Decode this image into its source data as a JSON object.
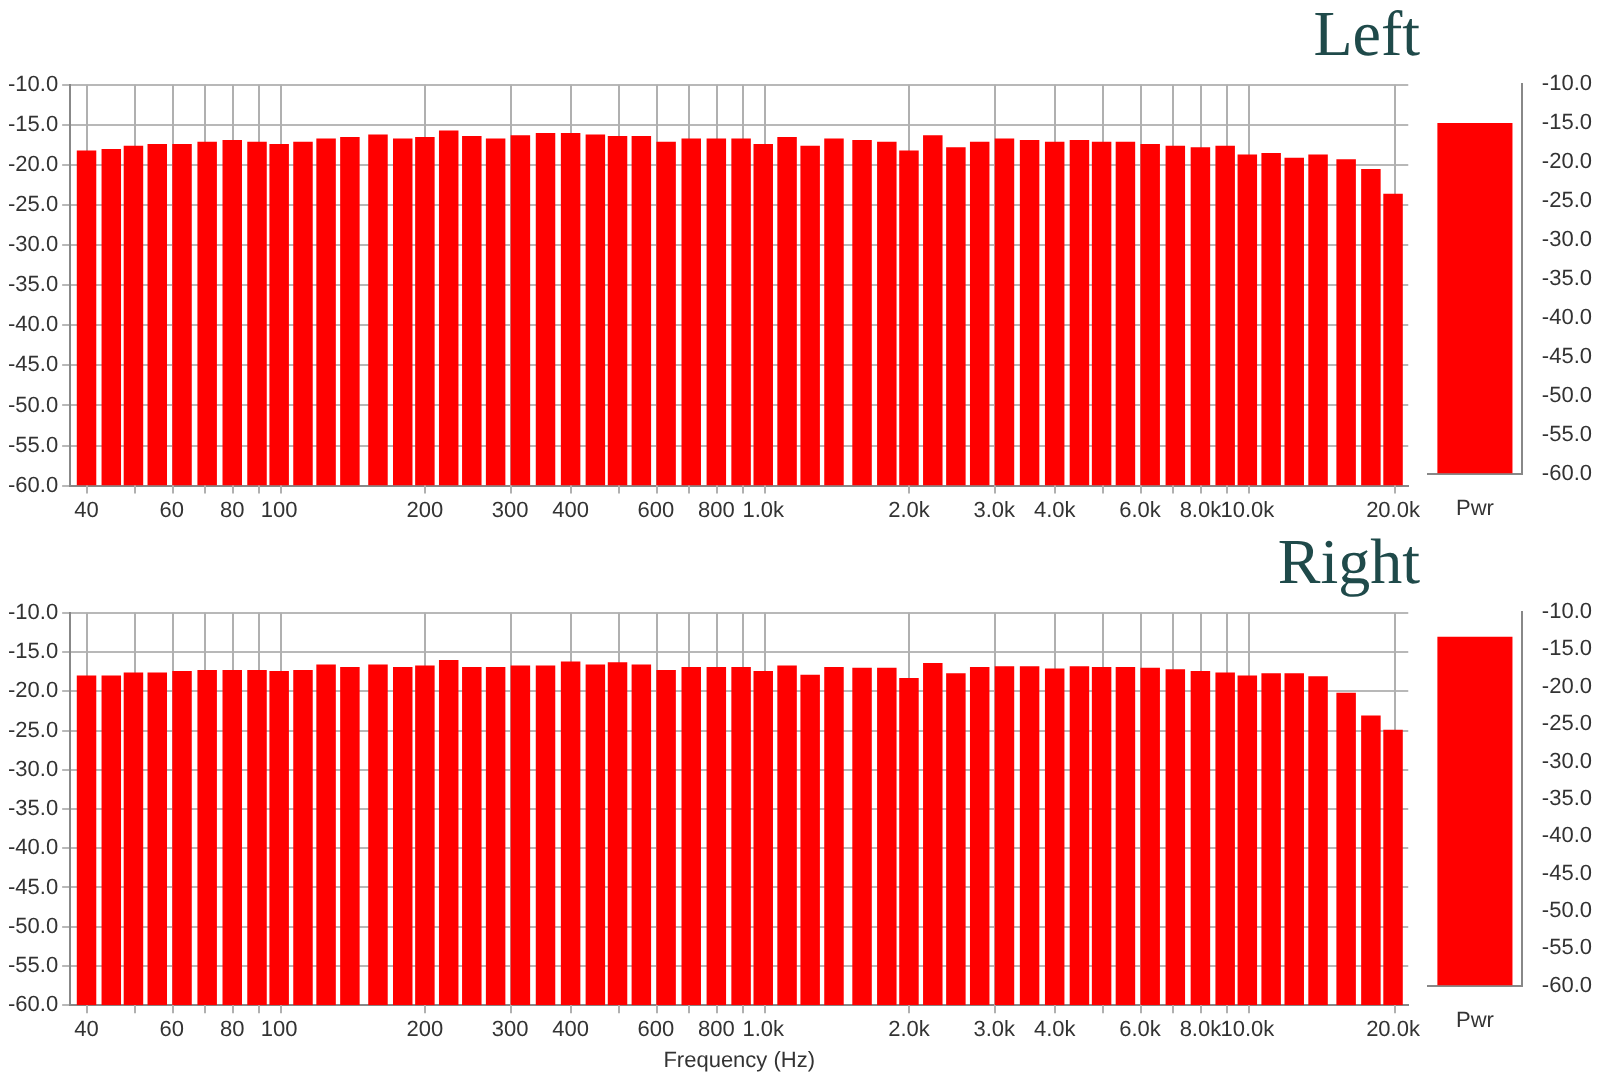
{
  "chart_data": [
    {
      "type": "bar",
      "title": "Left",
      "x": [
        40,
        45,
        50,
        56,
        63,
        71,
        80,
        90,
        100,
        112,
        125,
        140,
        160,
        180,
        200,
        224,
        250,
        280,
        315,
        355,
        400,
        450,
        500,
        560,
        630,
        710,
        800,
        900,
        1000,
        1120,
        1250,
        1400,
        1600,
        1800,
        2000,
        2240,
        2500,
        2800,
        3150,
        3550,
        4000,
        4500,
        5000,
        5600,
        6300,
        7100,
        8000,
        9000,
        10000,
        11200,
        12500,
        14000,
        16000,
        18000,
        20000
      ],
      "base": [
        -60,
        -60,
        -60,
        -60,
        -60,
        -60,
        -60,
        -60,
        -60,
        -60,
        -60,
        -60,
        -60,
        -60,
        -60,
        -60,
        -60,
        -60,
        -60,
        -60,
        -60,
        -60,
        -60,
        -60,
        -60,
        -60,
        -60,
        -60,
        -60,
        -60,
        -60,
        -60,
        -60,
        -60,
        -60,
        -60,
        -60,
        -60,
        -60,
        -60,
        -60,
        -60,
        -60,
        -60,
        -60,
        -60,
        -60,
        -60,
        -60,
        -60,
        -60,
        -60,
        -60,
        -60,
        -60
      ],
      "values": [
        41.8,
        42.0,
        42.4,
        42.6,
        42.6,
        42.9,
        43.1,
        42.9,
        42.6,
        42.9,
        43.3,
        43.5,
        43.8,
        43.3,
        43.5,
        44.3,
        43.6,
        43.3,
        43.7,
        44.0,
        44.0,
        43.8,
        43.6,
        43.6,
        42.9,
        43.3,
        43.3,
        43.3,
        42.6,
        43.5,
        42.4,
        43.3,
        43.1,
        42.9,
        41.8,
        43.7,
        42.2,
        42.9,
        43.3,
        43.1,
        42.9,
        43.1,
        42.9,
        42.9,
        42.6,
        42.4,
        42.2,
        42.4,
        41.3,
        41.5,
        40.9,
        41.3,
        40.7,
        39.5,
        36.4
      ],
      "color": "#ff0000",
      "log": "x",
      "grid": true,
      "xlim": [
        37,
        21500
      ],
      "xticks": [
        40,
        {
          "value": 50,
          "label": null
        },
        60,
        {
          "value": 70,
          "label": null
        },
        80,
        {
          "value": 90,
          "label": null
        },
        100,
        200,
        300,
        400,
        {
          "value": 500,
          "label": null
        },
        600,
        {
          "value": 700,
          "label": null
        },
        800,
        {
          "value": 900,
          "label": null
        },
        {
          "value": 1000,
          "label": "1.0k"
        },
        {
          "value": 2000,
          "label": "2.0k"
        },
        {
          "value": 3000,
          "label": "3.0k"
        },
        {
          "value": 4000,
          "label": "4.0k"
        },
        {
          "value": 5000,
          "label": null
        },
        {
          "value": 6000,
          "label": "6.0k"
        },
        {
          "value": 7000,
          "label": null
        },
        {
          "value": 8000,
          "label": "8.0k"
        },
        {
          "value": 9000,
          "label": null
        },
        {
          "value": 10000,
          "label": "10.0k"
        },
        {
          "value": 20000,
          "label": "20.0k"
        }
      ],
      "ylim": [
        -60,
        -10
      ],
      "yticks": [
        {
          "value": -60,
          "label": "-60.0"
        },
        {
          "value": -55,
          "label": "-55.0"
        },
        {
          "value": -50,
          "label": "-50.0"
        },
        {
          "value": -45,
          "label": "-45.0"
        },
        {
          "value": -40,
          "label": "-40.0"
        },
        {
          "value": -35,
          "label": "-35.0"
        },
        {
          "value": -30,
          "label": "-30.0"
        },
        {
          "value": -25,
          "label": "-25.0"
        },
        {
          "value": -20,
          "label": "-20.0"
        },
        {
          "value": -15,
          "label": "-15.0"
        },
        {
          "value": -10,
          "label": "-10.0"
        }
      ]
    },
    {
      "type": "bar",
      "categories": [
        "Pwr"
      ],
      "series": [
        {
          "color": "#ff0000",
          "axis": "y2",
          "base": [
            -60
          ],
          "values": [
            45.0
          ]
        }
      ],
      "y2lim": [
        -60,
        -10
      ],
      "y2ticks": [
        {
          "value": -60,
          "label": "-60.0"
        },
        {
          "value": -55,
          "label": "-55.0"
        },
        {
          "value": -50,
          "label": "-50.0"
        },
        {
          "value": -45,
          "label": "-45.0"
        },
        {
          "value": -40,
          "label": "-40.0"
        },
        {
          "value": -35,
          "label": "-35.0"
        },
        {
          "value": -30,
          "label": "-30.0"
        },
        {
          "value": -25,
          "label": "-25.0"
        },
        {
          "value": -20,
          "label": "-20.0"
        },
        {
          "value": -15,
          "label": "-15.0"
        },
        {
          "value": -10,
          "label": "-10.0"
        }
      ]
    },
    {
      "type": "bar",
      "title": "Right",
      "xlabel": "Frequency (Hz)",
      "x": [
        40,
        45,
        50,
        56,
        63,
        71,
        80,
        90,
        100,
        112,
        125,
        140,
        160,
        180,
        200,
        224,
        250,
        280,
        315,
        355,
        400,
        450,
        500,
        560,
        630,
        710,
        800,
        900,
        1000,
        1120,
        1250,
        1400,
        1600,
        1800,
        2000,
        2240,
        2500,
        2800,
        3150,
        3550,
        4000,
        4500,
        5000,
        5600,
        6300,
        7100,
        8000,
        9000,
        10000,
        11200,
        12500,
        14000,
        16000,
        18000,
        20000
      ],
      "base": [
        -60,
        -60,
        -60,
        -60,
        -60,
        -60,
        -60,
        -60,
        -60,
        -60,
        -60,
        -60,
        -60,
        -60,
        -60,
        -60,
        -60,
        -60,
        -60,
        -60,
        -60,
        -60,
        -60,
        -60,
        -60,
        -60,
        -60,
        -60,
        -60,
        -60,
        -60,
        -60,
        -60,
        -60,
        -60,
        -60,
        -60,
        -60,
        -60,
        -60,
        -60,
        -60,
        -60,
        -60,
        -60,
        -60,
        -60,
        -60,
        -60,
        -60,
        -60,
        -60,
        -60,
        -60,
        -60
      ],
      "values": [
        42.0,
        42.0,
        42.4,
        42.4,
        42.6,
        42.7,
        42.7,
        42.7,
        42.6,
        42.7,
        43.4,
        43.1,
        43.4,
        43.1,
        43.3,
        44.0,
        43.1,
        43.1,
        43.3,
        43.3,
        43.8,
        43.4,
        43.7,
        43.4,
        42.7,
        43.1,
        43.1,
        43.1,
        42.6,
        43.3,
        42.1,
        43.1,
        43.0,
        43.0,
        41.7,
        43.6,
        42.3,
        43.1,
        43.2,
        43.2,
        42.9,
        43.2,
        43.1,
        43.1,
        43.0,
        42.8,
        42.6,
        42.4,
        42.0,
        42.3,
        42.3,
        41.9,
        39.8,
        36.9,
        35.1
      ],
      "color": "#ff0000",
      "log": "x",
      "grid": true,
      "xlim": [
        37,
        21500
      ],
      "xticks": [
        40,
        {
          "value": 50,
          "label": null
        },
        60,
        {
          "value": 70,
          "label": null
        },
        80,
        {
          "value": 90,
          "label": null
        },
        100,
        200,
        300,
        400,
        {
          "value": 500,
          "label": null
        },
        600,
        {
          "value": 700,
          "label": null
        },
        800,
        {
          "value": 900,
          "label": null
        },
        {
          "value": 1000,
          "label": "1.0k"
        },
        {
          "value": 2000,
          "label": "2.0k"
        },
        {
          "value": 3000,
          "label": "3.0k"
        },
        {
          "value": 4000,
          "label": "4.0k"
        },
        {
          "value": 5000,
          "label": null
        },
        {
          "value": 6000,
          "label": "6.0k"
        },
        {
          "value": 7000,
          "label": null
        },
        {
          "value": 8000,
          "label": "8.0k"
        },
        {
          "value": 9000,
          "label": null
        },
        {
          "value": 10000,
          "label": "10.0k"
        },
        {
          "value": 20000,
          "label": "20.0k"
        }
      ],
      "ylim": [
        -60,
        -10
      ],
      "yticks": [
        {
          "value": -60,
          "label": "-60.0"
        },
        {
          "value": -55,
          "label": "-55.0"
        },
        {
          "value": -50,
          "label": "-50.0"
        },
        {
          "value": -45,
          "label": "-45.0"
        },
        {
          "value": -40,
          "label": "-40.0"
        },
        {
          "value": -35,
          "label": "-35.0"
        },
        {
          "value": -30,
          "label": "-30.0"
        },
        {
          "value": -25,
          "label": "-25.0"
        },
        {
          "value": -20,
          "label": "-20.0"
        },
        {
          "value": -15,
          "label": "-15.0"
        },
        {
          "value": -10,
          "label": "-10.0"
        }
      ]
    },
    {
      "type": "bar",
      "categories": [
        "Pwr"
      ],
      "series": [
        {
          "color": "#ff0000",
          "axis": "y2",
          "base": [
            -60
          ],
          "values": [
            46.7
          ]
        }
      ],
      "y2lim": [
        -60,
        -10
      ],
      "y2ticks": [
        {
          "value": -60,
          "label": "-60.0"
        },
        {
          "value": -55,
          "label": "-55.0"
        },
        {
          "value": -50,
          "label": "-50.0"
        },
        {
          "value": -45,
          "label": "-45.0"
        },
        {
          "value": -40,
          "label": "-40.0"
        },
        {
          "value": -35,
          "label": "-35.0"
        },
        {
          "value": -30,
          "label": "-30.0"
        },
        {
          "value": -25,
          "label": "-25.0"
        },
        {
          "value": -20,
          "label": "-20.0"
        },
        {
          "value": -15,
          "label": "-15.0"
        },
        {
          "value": -10,
          "label": "-10.0"
        }
      ]
    }
  ]
}
